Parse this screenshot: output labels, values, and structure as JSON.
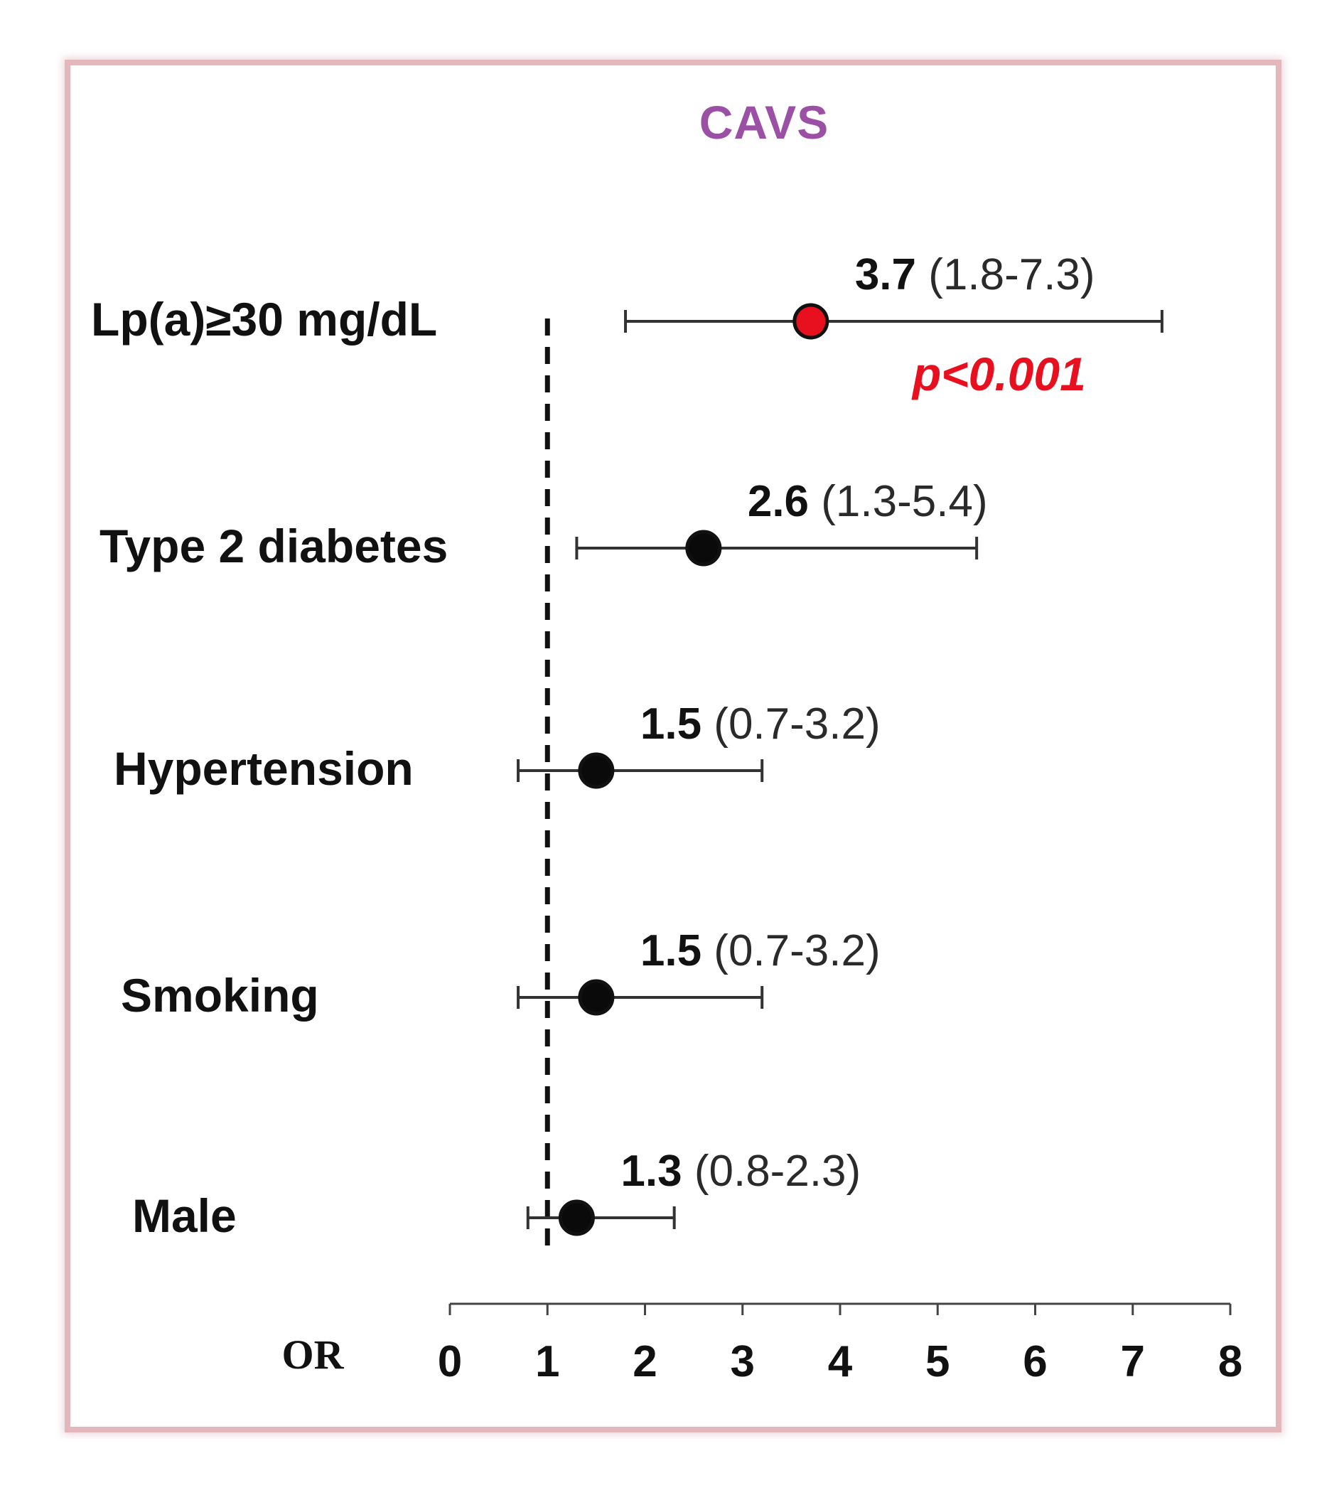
{
  "chart_data": {
    "type": "scatter",
    "subtype": "forest-plot",
    "title": "CAVS",
    "xlabel": "OR",
    "xlim": [
      0,
      8
    ],
    "x_ticks": [
      0,
      1,
      2,
      3,
      4,
      5,
      6,
      7,
      8
    ],
    "x_tick_labels": [
      "0",
      "1",
      "2",
      "3",
      "4",
      "5",
      "6",
      "7",
      "8"
    ],
    "reference_line": {
      "x": 1,
      "style": "dashed"
    },
    "grid": false,
    "rows": [
      {
        "label": "Lp(a)≥30 mg/dL",
        "or": 3.7,
        "ci_low": 1.8,
        "ci_high": 7.3,
        "or_text": "3.7",
        "ci_text": "(1.8-7.3)",
        "p_text": "p<0.001",
        "highlight": true
      },
      {
        "label": "Type 2 diabetes",
        "or": 2.6,
        "ci_low": 1.3,
        "ci_high": 5.4,
        "or_text": "2.6",
        "ci_text": "(1.3-5.4)",
        "highlight": false
      },
      {
        "label": "Hypertension",
        "or": 1.5,
        "ci_low": 0.7,
        "ci_high": 3.2,
        "or_text": "1.5",
        "ci_text": "(0.7-3.2)",
        "highlight": false
      },
      {
        "label": "Smoking",
        "or": 1.5,
        "ci_low": 0.7,
        "ci_high": 3.2,
        "or_text": "1.5",
        "ci_text": "(0.7-3.2)",
        "highlight": false
      },
      {
        "label": "Male",
        "or": 1.3,
        "ci_low": 0.8,
        "ci_high": 2.3,
        "or_text": "1.3",
        "ci_text": "(0.8-2.3)",
        "highlight": false
      }
    ]
  },
  "colors": {
    "title": "#9b4fa5",
    "highlight_point": "#e8101e",
    "highlight_text": "#e8101e",
    "point": "#0a0a0a",
    "whisker": "#333333",
    "reference_line": "#111111",
    "axis": "#444444",
    "frame": "#e3b7bc"
  }
}
